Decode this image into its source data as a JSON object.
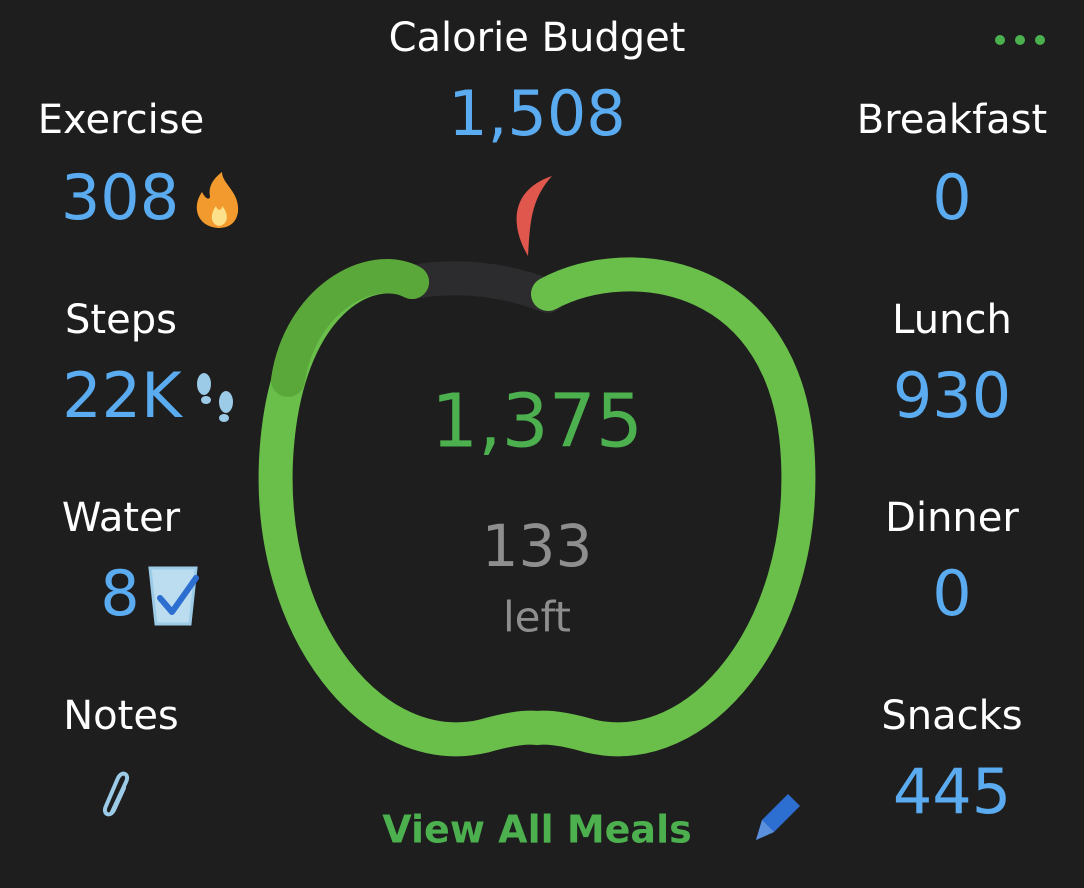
{
  "header": {
    "title": "Calorie Budget",
    "budget": "1,508"
  },
  "left": [
    {
      "label": "Exercise",
      "value": "308"
    },
    {
      "label": "Steps",
      "value": "22K"
    },
    {
      "label": "Water",
      "value": "8"
    },
    {
      "label": "Notes"
    }
  ],
  "right": [
    {
      "label": "Breakfast",
      "value": "0"
    },
    {
      "label": "Lunch",
      "value": "930"
    },
    {
      "label": "Dinner",
      "value": "0"
    },
    {
      "label": "Snacks",
      "value": "445"
    }
  ],
  "center": {
    "consumed": "1,375",
    "remaining": "133",
    "remaining_label": "left"
  },
  "footer": {
    "link": "View All Meals"
  }
}
